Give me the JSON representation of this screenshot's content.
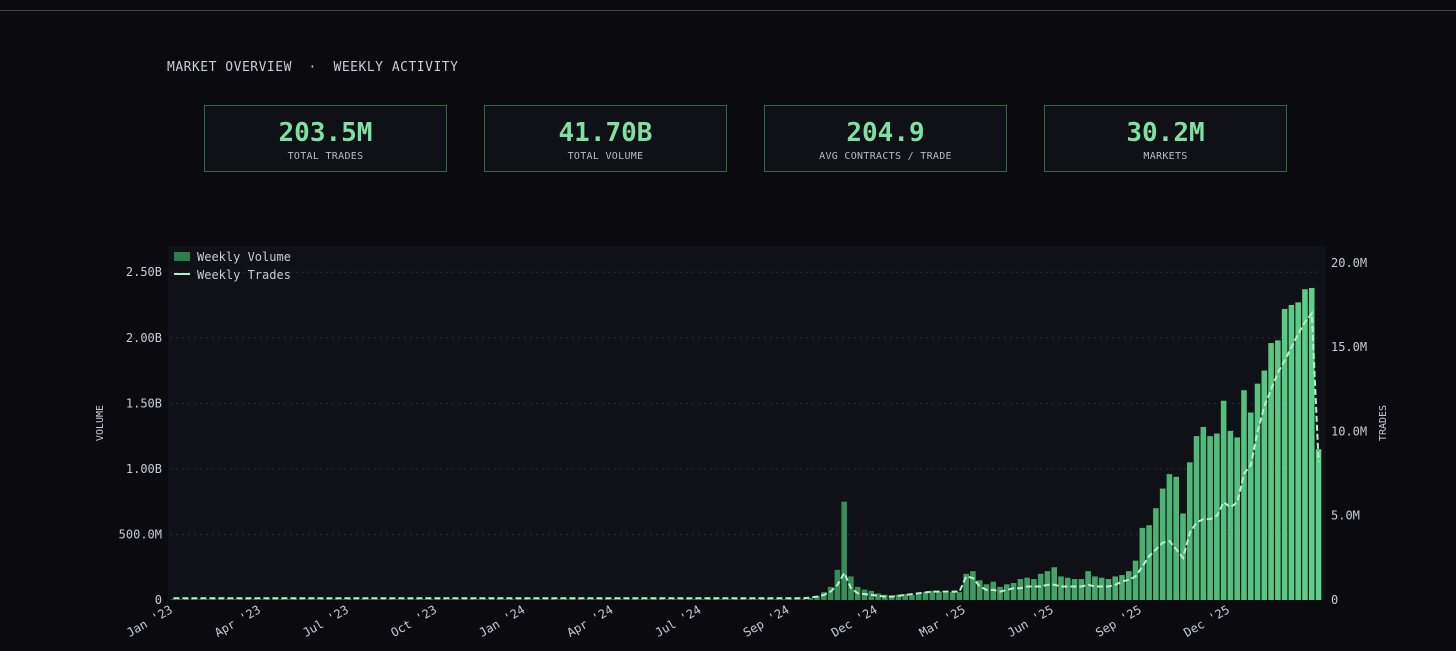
{
  "header": {
    "title": "MARKET OVERVIEW  ·  WEEKLY ACTIVITY"
  },
  "stats": [
    {
      "value": "203.5M",
      "label": "TOTAL TRADES"
    },
    {
      "value": "41.70B",
      "label": "TOTAL VOLUME"
    },
    {
      "value": "204.9",
      "label": "AVG CONTRACTS / TRADE"
    },
    {
      "value": "30.2M",
      "label": "MARKETS"
    }
  ],
  "colors": {
    "accent": "#7ee0a2",
    "bar_dark": "#2e7d4a",
    "bar_light": "#5fd08a",
    "line": "#b8f0cc",
    "card_border": "#2e6a45"
  },
  "chart_data": {
    "type": "bar",
    "title": "",
    "xlabel": "",
    "ylabel": "VOLUME",
    "y2label": "TRADES",
    "ylim": [
      0,
      2700000000
    ],
    "y2lim": [
      0,
      21000000
    ],
    "grid": true,
    "legend_position": "top-left",
    "legend": [
      "Weekly Volume",
      "Weekly Trades"
    ],
    "y_ticks": [
      {
        "value": 0,
        "label": "0"
      },
      {
        "value": 500000000,
        "label": "500.0M"
      },
      {
        "value": 1000000000,
        "label": "1.00B"
      },
      {
        "value": 1500000000,
        "label": "1.50B"
      },
      {
        "value": 2000000000,
        "label": "2.00B"
      },
      {
        "value": 2500000000,
        "label": "2.50B"
      }
    ],
    "y2_ticks": [
      {
        "value": 0,
        "label": "0"
      },
      {
        "value": 5000000,
        "label": "5.0M"
      },
      {
        "value": 10000000,
        "label": "10.0M"
      },
      {
        "value": 15000000,
        "label": "15.0M"
      },
      {
        "value": 20000000,
        "label": "20.0M"
      }
    ],
    "x_ticks": [
      {
        "index": 0,
        "label": "Jan '23"
      },
      {
        "index": 13,
        "label": "Apr '23"
      },
      {
        "index": 26,
        "label": "Jul '23"
      },
      {
        "index": 39,
        "label": "Oct '23"
      },
      {
        "index": 52,
        "label": "Jan '24"
      },
      {
        "index": 65,
        "label": "Apr '24"
      },
      {
        "index": 78,
        "label": "Jul '24"
      },
      {
        "index": 91,
        "label": "Sep '24"
      },
      {
        "index": 104,
        "label": "Dec '24"
      },
      {
        "index": 117,
        "label": "Mar '25"
      },
      {
        "index": 130,
        "label": "Jun '25"
      },
      {
        "index": 143,
        "label": "Sep '25"
      },
      {
        "index": 156,
        "label": "Dec '25"
      }
    ],
    "series": [
      {
        "name": "Weekly Volume",
        "type": "bar",
        "values": [
          5000000,
          5000000,
          5000000,
          5000000,
          5000000,
          5000000,
          5000000,
          5000000,
          5000000,
          5000000,
          5000000,
          5000000,
          5000000,
          5000000,
          5000000,
          5000000,
          5000000,
          5000000,
          5000000,
          5000000,
          5000000,
          5000000,
          5000000,
          5000000,
          5000000,
          5000000,
          5000000,
          5000000,
          5000000,
          5000000,
          5000000,
          5000000,
          5000000,
          5000000,
          5000000,
          5000000,
          5000000,
          5000000,
          5000000,
          5000000,
          5000000,
          5000000,
          5000000,
          5000000,
          5000000,
          5000000,
          5000000,
          5000000,
          5000000,
          5000000,
          5000000,
          5000000,
          5000000,
          5000000,
          5000000,
          5000000,
          5000000,
          5000000,
          5000000,
          5000000,
          5000000,
          5000000,
          5000000,
          5000000,
          5000000,
          5000000,
          5000000,
          5000000,
          5000000,
          5000000,
          5000000,
          5000000,
          5000000,
          5000000,
          5000000,
          5000000,
          5000000,
          5000000,
          5000000,
          5000000,
          5000000,
          5000000,
          5000000,
          5000000,
          5000000,
          5000000,
          5000000,
          5000000,
          5000000,
          5000000,
          5000000,
          5000000,
          5000000,
          5000000,
          15000000,
          30000000,
          60000000,
          100000000,
          230000000,
          750000000,
          180000000,
          100000000,
          80000000,
          70000000,
          50000000,
          40000000,
          35000000,
          40000000,
          45000000,
          40000000,
          50000000,
          60000000,
          70000000,
          65000000,
          55000000,
          60000000,
          60000000,
          200000000,
          220000000,
          150000000,
          120000000,
          140000000,
          100000000,
          120000000,
          130000000,
          160000000,
          170000000,
          160000000,
          200000000,
          220000000,
          250000000,
          180000000,
          170000000,
          160000000,
          160000000,
          220000000,
          180000000,
          170000000,
          160000000,
          180000000,
          190000000,
          220000000,
          300000000,
          550000000,
          570000000,
          700000000,
          850000000,
          960000000,
          940000000,
          660000000,
          1050000000,
          1250000000,
          1320000000,
          1250000000,
          1270000000,
          1520000000,
          1290000000,
          1240000000,
          1600000000,
          1430000000,
          1650000000,
          1750000000,
          1960000000,
          1980000000,
          2220000000,
          2250000000,
          2270000000,
          2370000000,
          2380000000,
          1150000000
        ]
      },
      {
        "name": "Weekly Trades",
        "type": "line",
        "style": "dashed",
        "values": [
          100000,
          100000,
          100000,
          100000,
          100000,
          100000,
          100000,
          100000,
          100000,
          100000,
          100000,
          100000,
          100000,
          100000,
          100000,
          100000,
          100000,
          100000,
          100000,
          100000,
          100000,
          100000,
          100000,
          100000,
          100000,
          100000,
          100000,
          100000,
          100000,
          100000,
          100000,
          100000,
          100000,
          100000,
          100000,
          100000,
          100000,
          100000,
          100000,
          100000,
          100000,
          100000,
          100000,
          100000,
          100000,
          100000,
          100000,
          100000,
          100000,
          100000,
          100000,
          100000,
          100000,
          100000,
          100000,
          100000,
          100000,
          100000,
          100000,
          100000,
          100000,
          100000,
          100000,
          100000,
          100000,
          100000,
          100000,
          100000,
          100000,
          100000,
          100000,
          100000,
          100000,
          100000,
          100000,
          100000,
          100000,
          100000,
          100000,
          100000,
          100000,
          100000,
          100000,
          100000,
          100000,
          100000,
          100000,
          100000,
          100000,
          100000,
          100000,
          100000,
          100000,
          100000,
          150000,
          200000,
          300000,
          500000,
          900000,
          1600000,
          700000,
          400000,
          350000,
          300000,
          250000,
          200000,
          200000,
          250000,
          300000,
          350000,
          400000,
          450000,
          500000,
          500000,
          500000,
          500000,
          500000,
          1400000,
          1300000,
          800000,
          600000,
          600000,
          500000,
          600000,
          700000,
          700000,
          800000,
          800000,
          800000,
          900000,
          900000,
          800000,
          800000,
          800000,
          800000,
          900000,
          800000,
          800000,
          800000,
          900000,
          1100000,
          1200000,
          1400000,
          2000000,
          2600000,
          3000000,
          3400000,
          3500000,
          3000000,
          2500000,
          4000000,
          4600000,
          4800000,
          4800000,
          5000000,
          5800000,
          5500000,
          5800000,
          7500000,
          8000000,
          10000000,
          11500000,
          12500000,
          13500000,
          14200000,
          15000000,
          15800000,
          16500000,
          17000000,
          8200000
        ]
      }
    ]
  }
}
